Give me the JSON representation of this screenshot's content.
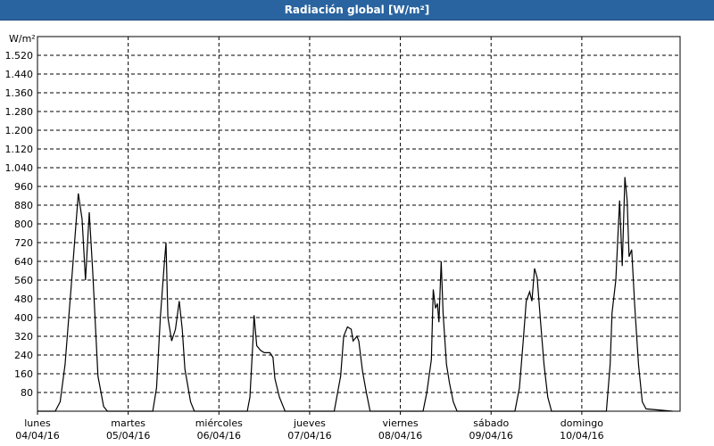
{
  "chart_data": {
    "type": "line",
    "title": "Radiación global [W/m²]",
    "y_label": "W/m²",
    "xlim": [
      0,
      170
    ],
    "ylim": [
      0,
      1600
    ],
    "yticks": [
      80,
      160,
      240,
      320,
      400,
      480,
      560,
      640,
      720,
      800,
      880,
      960,
      {
        "value": 1040,
        "label": "1.040"
      },
      {
        "value": 1120,
        "label": "1.120"
      },
      {
        "value": 1200,
        "label": "1.200"
      },
      {
        "value": 1280,
        "label": "1.280"
      },
      {
        "value": 1360,
        "label": "1.360"
      },
      {
        "value": 1440,
        "label": "1.440"
      },
      {
        "value": 1520,
        "label": "1.520"
      }
    ],
    "xticks": [
      {
        "value": 0,
        "label": "lunes"
      },
      {
        "value": 24,
        "label": "martes"
      },
      {
        "value": 48,
        "label": "miércoles"
      },
      {
        "value": 72,
        "label": "jueves"
      },
      {
        "value": 96,
        "label": "viernes"
      },
      {
        "value": 120,
        "label": "sábado"
      },
      {
        "value": 144,
        "label": "domingo"
      }
    ],
    "xtick_dates": [
      "04/04/16",
      "05/04/16",
      "06/04/16",
      "07/04/16",
      "08/04/16",
      "09/04/16",
      "10/04/16"
    ],
    "grid": true,
    "series": [
      {
        "name": "Radiación global",
        "color": "#000000",
        "x": [
          0,
          4.7,
          6,
          7.3,
          9,
          10.8,
          11.8,
          12.7,
          13.7,
          14.6,
          16,
          17.5,
          18.5,
          30.5,
          31.5,
          32.5,
          33.5,
          34,
          34.5,
          35.5,
          36.5,
          37.5,
          38.3,
          39,
          40.5,
          41.5,
          55.5,
          56.2,
          57,
          57.3,
          58,
          59,
          60,
          61.5,
          62.3,
          62.8,
          64,
          65.5,
          78.5,
          80.2,
          81,
          82,
          83,
          83.5,
          84.5,
          85,
          86,
          87,
          88,
          102,
          103,
          104.2,
          104.7,
          105.3,
          105.8,
          106.2,
          106.8,
          107.3,
          108.2,
          109,
          110,
          111,
          126.3,
          127.5,
          128.5,
          129.3,
          130.2,
          130.8,
          131.5,
          132.2,
          133,
          134,
          135,
          136,
          150.5,
          151.5,
          152,
          153,
          154,
          154.7,
          155.4,
          156,
          156.5,
          157.2,
          158,
          159,
          160,
          161,
          168
        ],
        "values": [
          0,
          0,
          40,
          200,
          550,
          930,
          820,
          560,
          850,
          600,
          150,
          20,
          0,
          0,
          100,
          400,
          620,
          720,
          400,
          300,
          350,
          470,
          350,
          180,
          40,
          0,
          0,
          60,
          300,
          410,
          280,
          260,
          250,
          250,
          230,
          140,
          60,
          0,
          0,
          150,
          320,
          360,
          350,
          300,
          320,
          300,
          170,
          80,
          0,
          0,
          80,
          220,
          520,
          440,
          460,
          380,
          640,
          420,
          200,
          120,
          40,
          0,
          0,
          100,
          300,
          470,
          510,
          470,
          610,
          570,
          400,
          200,
          60,
          0,
          0,
          200,
          420,
          560,
          900,
          620,
          1000,
          900,
          660,
          690,
          450,
          200,
          40,
          10,
          0
        ]
      }
    ]
  }
}
